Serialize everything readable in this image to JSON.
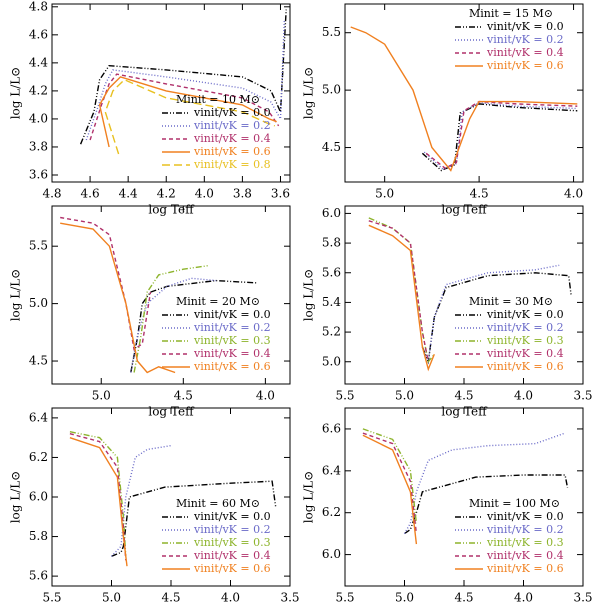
{
  "chart_data": [
    {
      "type": "line",
      "legend_title": "Minit = 10 M⊙",
      "xlabel": "log Teff",
      "ylabel": "log L/L⊙",
      "legend": "lower right",
      "xlim": [
        4.8,
        3.55
      ],
      "xticks": [
        4.8,
        4.6,
        4.4,
        4.2,
        {
          "value": 4,
          "label": "4.0"
        },
        3.8,
        3.6
      ],
      "ylim": [
        3.55,
        4.82
      ],
      "yticks": [
        3.6,
        3.8,
        {
          "value": 4,
          "label": "4.0"
        },
        4.2,
        4.4,
        4.6,
        4.8
      ],
      "series": [
        {
          "name": "vinit/vK = 0.0",
          "color": "#000000",
          "dash": "dashdot",
          "x": [
            4.65,
            4.58,
            4.55,
            4.5,
            4.2,
            3.8,
            3.65,
            3.6,
            3.57
          ],
          "values": [
            3.82,
            4.05,
            4.28,
            4.38,
            4.35,
            4.3,
            4.2,
            4.05,
            4.78
          ]
        },
        {
          "name": "vinit/vK = 0.2",
          "color": "#6a6ac8",
          "dash": "dotted",
          "x": [
            4.62,
            4.56,
            4.52,
            4.48,
            4.2,
            3.8,
            3.65,
            3.6,
            3.58
          ],
          "values": [
            3.85,
            4.08,
            4.25,
            4.35,
            4.3,
            4.22,
            4.12,
            4,
            4.7
          ]
        },
        {
          "name": "vinit/vK = 0.4",
          "color": "#b0306a",
          "dash": "dashed",
          "x": [
            4.6,
            4.54,
            4.5,
            4.46,
            4.2,
            3.8,
            3.66,
            3.61
          ],
          "values": [
            3.85,
            4.1,
            4.25,
            4.32,
            4.25,
            4.15,
            4.05,
            3.95
          ]
        },
        {
          "name": "vinit/vK = 0.6",
          "color": "#f08020",
          "dash": "solid",
          "x": [
            4.5,
            4.55,
            4.5,
            4.44,
            4.2,
            3.8,
            3.66,
            3.62
          ],
          "values": [
            3.8,
            4.1,
            4.22,
            4.3,
            4.2,
            4.1,
            4,
            3.98
          ]
        },
        {
          "name": "vinit/vK = 0.8",
          "color": "#e8c020",
          "dash": "longdash",
          "x": [
            4.45,
            4.52,
            4.48,
            4.42,
            4.2,
            3.8,
            3.67,
            3.63
          ],
          "values": [
            3.75,
            4.05,
            4.2,
            4.28,
            4.15,
            4.05,
            3.97,
            3.95
          ]
        }
      ]
    },
    {
      "type": "line",
      "legend_title": "Minit = 15 M⊙",
      "xlabel": "log Teff",
      "ylabel": "log L/L⊙",
      "legend": "upper right",
      "xlim": [
        5.21,
        3.95
      ],
      "xticks": [
        {
          "value": 5,
          "label": "5.0"
        },
        4.5,
        {
          "value": 4,
          "label": "4.0"
        }
      ],
      "ylim": [
        4.2,
        5.75
      ],
      "yticks": [
        4.5,
        {
          "value": 5,
          "label": "5.0"
        },
        5.5
      ],
      "series": [
        {
          "name": "vinit/vK = 0.0",
          "color": "#000000",
          "dash": "dashdot",
          "x": [
            4.8,
            4.7,
            4.63,
            4.6,
            4.5,
            4.3,
            3.98
          ],
          "values": [
            4.45,
            4.3,
            4.35,
            4.8,
            4.88,
            4.85,
            4.82
          ]
        },
        {
          "name": "vinit/vK = 0.2",
          "color": "#6a6ac8",
          "dash": "dotted",
          "x": [
            4.79,
            4.69,
            4.62,
            4.59,
            4.5,
            4.3,
            3.98
          ],
          "values": [
            4.46,
            4.31,
            4.36,
            4.81,
            4.89,
            4.86,
            4.84
          ]
        },
        {
          "name": "vinit/vK = 0.4",
          "color": "#b0306a",
          "dash": "dashed",
          "x": [
            4.78,
            4.68,
            4.62,
            4.58,
            4.5,
            4.3,
            3.98
          ],
          "values": [
            4.45,
            4.32,
            4.37,
            4.82,
            4.9,
            4.88,
            4.86
          ]
        },
        {
          "name": "vinit/vK = 0.6",
          "color": "#f08020",
          "dash": "solid",
          "x": [
            5.18,
            5.1,
            5,
            4.85,
            4.75,
            4.65,
            4.55,
            4.5,
            4.3,
            3.98
          ],
          "values": [
            5.55,
            5.5,
            5.4,
            5,
            4.5,
            4.3,
            4.75,
            4.9,
            4.9,
            4.88
          ]
        }
      ]
    },
    {
      "type": "line",
      "legend_title": "Minit = 20 M⊙",
      "xlabel": "log Teff",
      "ylabel": "log L/L⊙",
      "legend": "lower right",
      "xlim": [
        5.3,
        3.85
      ],
      "xticks": [
        {
          "value": 5,
          "label": "5.0"
        },
        4.5,
        {
          "value": 4,
          "label": "4.0"
        }
      ],
      "ylim": [
        4.3,
        5.85
      ],
      "yticks": [
        4.5,
        {
          "value": 5,
          "label": "5.0"
        },
        5.5
      ],
      "series": [
        {
          "name": "vinit/vK = 0.0",
          "color": "#000000",
          "dash": "dashdot",
          "x": [
            4.82,
            4.78,
            4.75,
            4.7,
            4.6,
            4.3,
            4.05
          ],
          "values": [
            4.4,
            4.7,
            5,
            5.1,
            5.15,
            5.2,
            5.18
          ]
        },
        {
          "name": "vinit/vK = 0.2",
          "color": "#6a6ac8",
          "dash": "dotted",
          "x": [
            4.82,
            4.78,
            4.72,
            4.6,
            4.45,
            4.3
          ],
          "values": [
            4.4,
            4.72,
            5,
            5.15,
            5.22,
            5.2
          ]
        },
        {
          "name": "vinit/vK = 0.3",
          "color": "#8db42c",
          "dash": "dashdot",
          "x": [
            4.8,
            4.76,
            4.72,
            4.65,
            4.5,
            4.35
          ],
          "values": [
            4.4,
            4.7,
            5.1,
            5.25,
            5.3,
            5.33
          ]
        },
        {
          "name": "vinit/vK = 0.4",
          "color": "#b0306a",
          "dash": "dashed",
          "x": [
            5.25,
            5.05,
            4.95,
            4.85,
            4.8,
            4.75,
            4.7
          ],
          "values": [
            5.75,
            5.7,
            5.6,
            5,
            4.6,
            4.65,
            5.1
          ]
        },
        {
          "name": "vinit/vK = 0.6",
          "color": "#f08020",
          "dash": "solid",
          "x": [
            5.25,
            5.05,
            4.95,
            4.85,
            4.78,
            4.72,
            4.65,
            4.55
          ],
          "values": [
            5.7,
            5.65,
            5.5,
            5,
            4.5,
            4.4,
            4.45,
            4.4
          ]
        }
      ]
    },
    {
      "type": "line",
      "legend_title": "Minit = 30 M⊙",
      "xlabel": "log Teff",
      "ylabel": "log L/L⊙",
      "legend": "lower right",
      "xlim": [
        5.5,
        3.5
      ],
      "xticks": [
        5.5,
        {
          "value": 5,
          "label": "5.0"
        },
        4.5,
        {
          "value": 4,
          "label": "4.0"
        },
        3.5
      ],
      "ylim": [
        4.85,
        6.05
      ],
      "yticks": [
        {
          "value": 5,
          "label": "5.0"
        },
        5.2,
        5.4,
        5.6,
        5.8,
        {
          "value": 6,
          "label": "6.0"
        }
      ],
      "series": [
        {
          "name": "vinit/vK = 0.0",
          "color": "#000000",
          "dash": "dashdot",
          "x": [
            4.85,
            4.8,
            4.75,
            4.65,
            4.3,
            3.9,
            3.62,
            3.6
          ],
          "values": [
            5.1,
            5,
            5.3,
            5.5,
            5.58,
            5.6,
            5.58,
            5.45
          ]
        },
        {
          "name": "vinit/vK = 0.2",
          "color": "#6a6ac8",
          "dash": "dotted",
          "x": [
            4.85,
            4.8,
            4.75,
            4.65,
            4.3,
            3.9,
            3.7
          ],
          "values": [
            5.1,
            5,
            5.3,
            5.52,
            5.6,
            5.62,
            5.65
          ]
        },
        {
          "name": "vinit/vK = 0.3",
          "color": "#8db42c",
          "dash": "dashdot",
          "x": [
            5.3,
            5.1,
            4.95,
            4.85,
            4.8,
            4.75
          ],
          "values": [
            5.97,
            5.9,
            5.8,
            5.2,
            5,
            5.05
          ]
        },
        {
          "name": "vinit/vK = 0.4",
          "color": "#b0306a",
          "dash": "dashed",
          "x": [
            5.3,
            5.1,
            4.95,
            4.85,
            4.8
          ],
          "values": [
            5.95,
            5.9,
            5.8,
            5.2,
            5
          ]
        },
        {
          "name": "vinit/vK = 0.6",
          "color": "#f08020",
          "dash": "solid",
          "x": [
            5.3,
            5.1,
            4.95,
            4.85,
            4.8,
            4.75
          ],
          "values": [
            5.92,
            5.85,
            5.75,
            5.1,
            4.95,
            5.05
          ]
        }
      ]
    },
    {
      "type": "line",
      "legend_title": "Minit = 60 M⊙",
      "xlabel": "log Teff",
      "ylabel": "log L/L⊙",
      "legend": "lower right",
      "xlim": [
        5.5,
        3.5
      ],
      "xticks": [
        5.5,
        {
          "value": 5,
          "label": "5.0"
        },
        4.5,
        {
          "value": 4,
          "label": "4.0"
        },
        3.5
      ],
      "ylim": [
        5.55,
        6.45
      ],
      "yticks": [
        5.6,
        5.8,
        {
          "value": 6,
          "label": "6.0"
        },
        6.2,
        6.4
      ],
      "series": [
        {
          "name": "vinit/vK = 0.0",
          "color": "#000000",
          "dash": "dashdot",
          "x": [
            5,
            4.92,
            4.9,
            4.85,
            4.55,
            4,
            3.65,
            3.62
          ],
          "values": [
            5.7,
            5.72,
            5.75,
            6,
            6.05,
            6.07,
            6.08,
            5.95
          ]
        },
        {
          "name": "vinit/vK = 0.2",
          "color": "#6a6ac8",
          "dash": "dotted",
          "x": [
            5,
            4.92,
            4.88,
            4.8,
            4.7,
            4.5
          ],
          "values": [
            5.7,
            5.75,
            6,
            6.2,
            6.24,
            6.26
          ]
        },
        {
          "name": "vinit/vK = 0.3",
          "color": "#8db42c",
          "dash": "dashdot",
          "x": [
            5.35,
            5.1,
            4.95,
            4.9,
            4.88
          ],
          "values": [
            6.33,
            6.3,
            6.2,
            5.9,
            5.7
          ]
        },
        {
          "name": "vinit/vK = 0.4",
          "color": "#b0306a",
          "dash": "dashed",
          "x": [
            5.35,
            5.1,
            4.95,
            4.9,
            4.88
          ],
          "values": [
            6.32,
            6.28,
            6.15,
            5.85,
            5.68
          ]
        },
        {
          "name": "vinit/vK = 0.6",
          "color": "#f08020",
          "dash": "solid",
          "x": [
            5.35,
            5.1,
            4.95,
            4.9,
            4.87
          ],
          "values": [
            6.3,
            6.25,
            6.1,
            5.8,
            5.65
          ]
        }
      ]
    },
    {
      "type": "line",
      "legend_title": "Minit = 100 M⊙",
      "xlabel": "log Teff",
      "ylabel": "log L/L⊙",
      "legend": "lower right",
      "xlim": [
        5.5,
        3.5
      ],
      "xticks": [
        5.5,
        {
          "value": 5,
          "label": "5.0"
        },
        4.5,
        {
          "value": 4,
          "label": "4.0"
        },
        3.5
      ],
      "ylim": [
        5.85,
        6.7
      ],
      "yticks": [
        {
          "value": 6,
          "label": "6.0"
        },
        6.2,
        6.4,
        6.6
      ],
      "series": [
        {
          "name": "vinit/vK = 0.0",
          "color": "#000000",
          "dash": "dashdot",
          "x": [
            5,
            4.95,
            4.9,
            4.85,
            4.4,
            4,
            3.65,
            3.63
          ],
          "values": [
            6.1,
            6.12,
            6.2,
            6.3,
            6.37,
            6.38,
            6.38,
            6.32
          ]
        },
        {
          "name": "vinit/vK = 0.2",
          "color": "#6a6ac8",
          "dash": "dotted",
          "x": [
            5,
            4.95,
            4.9,
            4.8,
            4.6,
            4.3,
            3.9,
            3.65
          ],
          "values": [
            6.1,
            6.15,
            6.3,
            6.45,
            6.5,
            6.52,
            6.53,
            6.58
          ]
        },
        {
          "name": "vinit/vK = 0.3",
          "color": "#8db42c",
          "dash": "dashdot",
          "x": [
            5.35,
            5.1,
            4.95,
            4.9
          ],
          "values": [
            6.6,
            6.55,
            6.4,
            6.15
          ]
        },
        {
          "name": "vinit/vK = 0.4",
          "color": "#b0306a",
          "dash": "dashed",
          "x": [
            5.35,
            5.1,
            4.95,
            4.9
          ],
          "values": [
            6.58,
            6.53,
            6.35,
            6.1
          ]
        },
        {
          "name": "vinit/vK = 0.6",
          "color": "#f08020",
          "dash": "solid",
          "x": [
            5.35,
            5.1,
            4.95,
            4.9
          ],
          "values": [
            6.57,
            6.5,
            6.3,
            6.05
          ]
        }
      ]
    }
  ]
}
